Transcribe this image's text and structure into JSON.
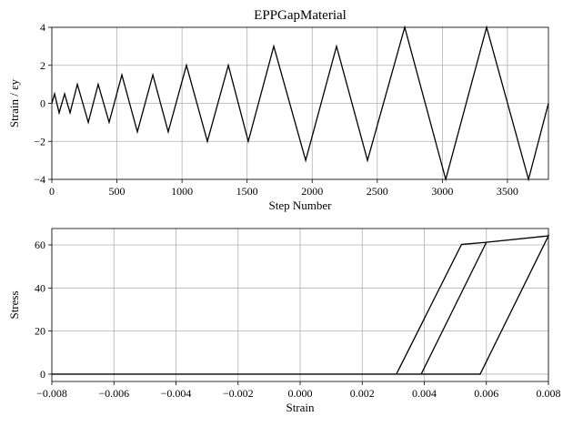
{
  "chart_data": [
    {
      "type": "line",
      "title": "EPPGapMaterial",
      "xlabel": "Step Number",
      "ylabel": "Strain / εy",
      "grid": true,
      "xlim": [
        0,
        3815
      ],
      "ylim": [
        -4,
        4
      ],
      "xticks": [
        0,
        500,
        1000,
        1500,
        2000,
        2500,
        3000,
        3500
      ],
      "yticks": [
        {
          "value": -4,
          "label": "−4"
        },
        {
          "value": -2,
          "label": "−2"
        },
        0,
        2,
        4
      ],
      "series": [
        {
          "color": "#000000",
          "x": [
            0,
            21,
            56,
            98,
            140,
            196,
            280,
            356,
            440,
            538,
            657,
            776,
            894,
            1034,
            1195,
            1356,
            1509,
            1705,
            1950,
            2187,
            2425,
            2711,
            3026,
            3340,
            3662,
            3815
          ],
          "values": [
            0,
            0.5,
            -0.5,
            0.5,
            -0.5,
            1,
            -1,
            1,
            -1,
            1.5,
            -1.5,
            1.5,
            -1.5,
            2,
            -2,
            2,
            -2,
            3,
            -3,
            3,
            -3,
            4,
            -4,
            4,
            -4,
            0
          ]
        }
      ]
    },
    {
      "type": "line",
      "xlabel": "Strain",
      "ylabel": "Stress",
      "grid": true,
      "xlim": [
        -0.008,
        0.008
      ],
      "ylim": [
        -3.4,
        67.6
      ],
      "xticks": [
        {
          "value": -0.008,
          "label": "−0.008"
        },
        {
          "value": -0.006,
          "label": "−0.006"
        },
        {
          "value": -0.004,
          "label": "−0.004"
        },
        {
          "value": -0.002,
          "label": "−0.002"
        },
        {
          "value": 0,
          "label": "0.000"
        },
        0.002,
        0.004,
        0.006,
        0.008
      ],
      "yticks": [
        0,
        20,
        40,
        60
      ],
      "series": [
        {
          "color": "#000000",
          "x": [
            0,
            0.0031,
            0.004,
            0.0031,
            -0.004,
            0.0031,
            0.004,
            0.0031,
            -0.006,
            0.0031,
            0.0052,
            0.006,
            0.0039,
            -0.006,
            0.0039,
            0.006,
            0.0039,
            -0.008,
            0.0039,
            0.006,
            0.008,
            0.0058,
            -0.008,
            0.0058,
            0.008,
            0.0058,
            0
          ],
          "values": [
            0,
            0,
            25.7,
            0,
            0,
            0,
            25.7,
            0,
            0,
            0,
            60.2,
            61.2,
            0,
            0,
            0,
            61.2,
            0,
            0,
            0,
            61.2,
            64.2,
            0,
            0,
            0,
            64.2,
            0,
            0
          ]
        }
      ]
    }
  ]
}
